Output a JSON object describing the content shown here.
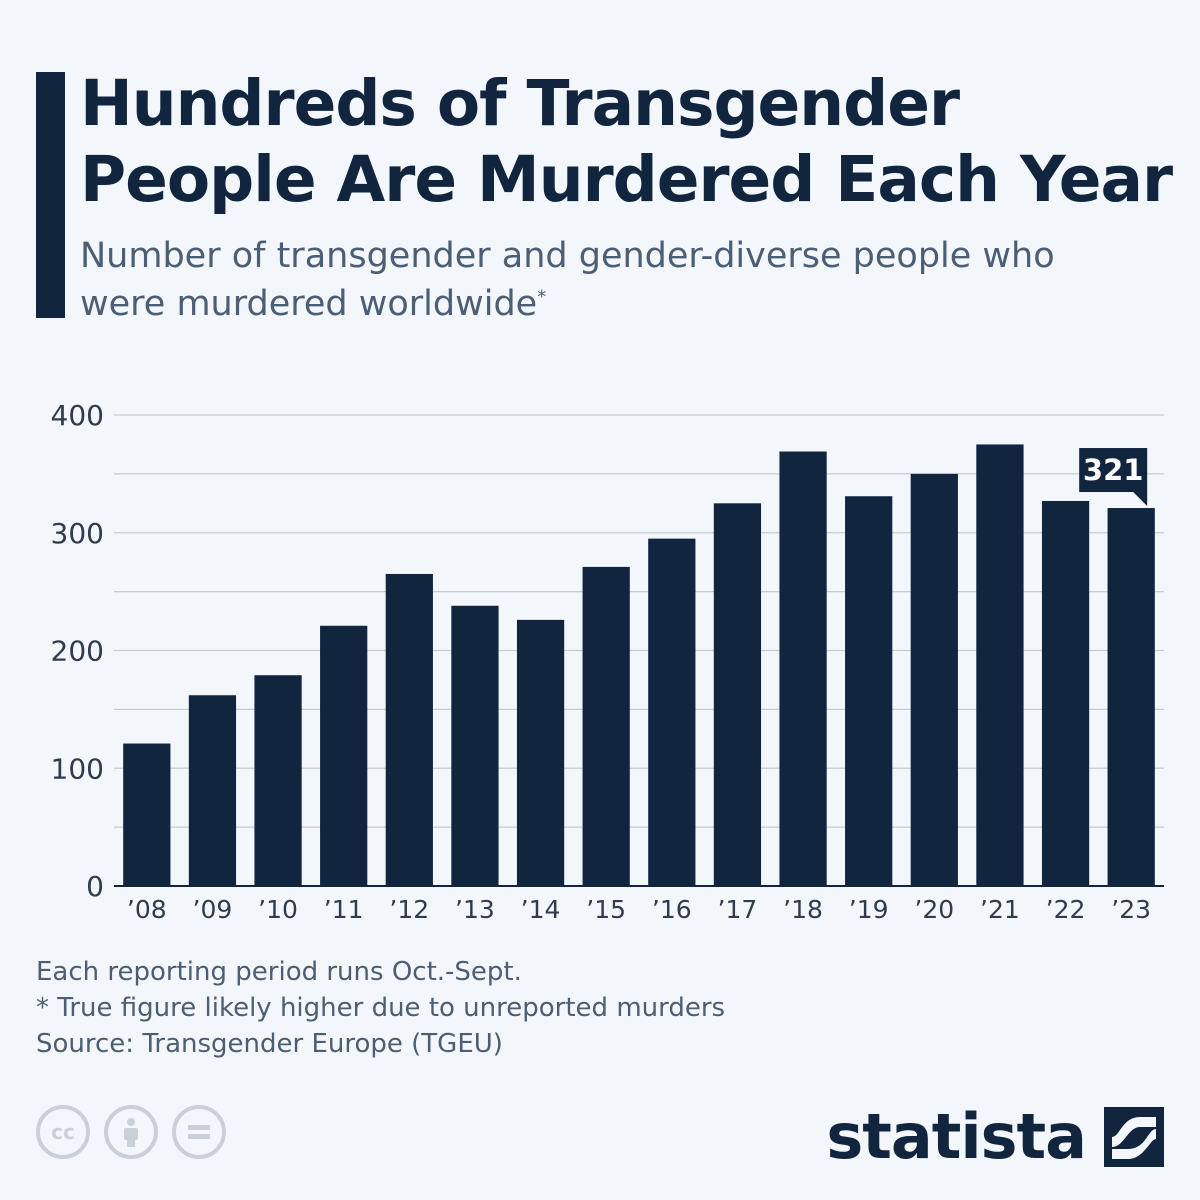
{
  "header": {
    "title": "Hundreds of Transgender People Are Murdered Each Year",
    "subtitle": "Number of transgender and gender-diverse people who were murdered worldwide",
    "subtitle_mark": "*"
  },
  "chart_data": {
    "type": "bar",
    "categories": [
      "’08",
      "’09",
      "’10",
      "’11",
      "’12",
      "’13",
      "’14",
      "’15",
      "’16",
      "’17",
      "’18",
      "’19",
      "’20",
      "’21",
      "’22",
      "’23"
    ],
    "values": [
      121,
      162,
      179,
      221,
      265,
      238,
      226,
      271,
      295,
      325,
      369,
      331,
      350,
      375,
      327,
      321
    ],
    "ylim": [
      0,
      400
    ],
    "yticks": [
      0,
      100,
      200,
      300,
      400
    ],
    "grid": true,
    "highlight": {
      "category": "’23",
      "label": "321"
    },
    "bar_color": "#12253f",
    "grid_color": "#c5ccd4"
  },
  "notes": {
    "line1": "Each reporting period runs Oct.-Sept.",
    "line2": "* True figure likely higher due to unreported murders",
    "source": "Source: Transgender Europe (TGEU)"
  },
  "license_icons": [
    "cc-icon",
    "attribution-icon",
    "no-derivatives-icon"
  ],
  "brand": {
    "name": "statista",
    "color": "#12253f"
  }
}
